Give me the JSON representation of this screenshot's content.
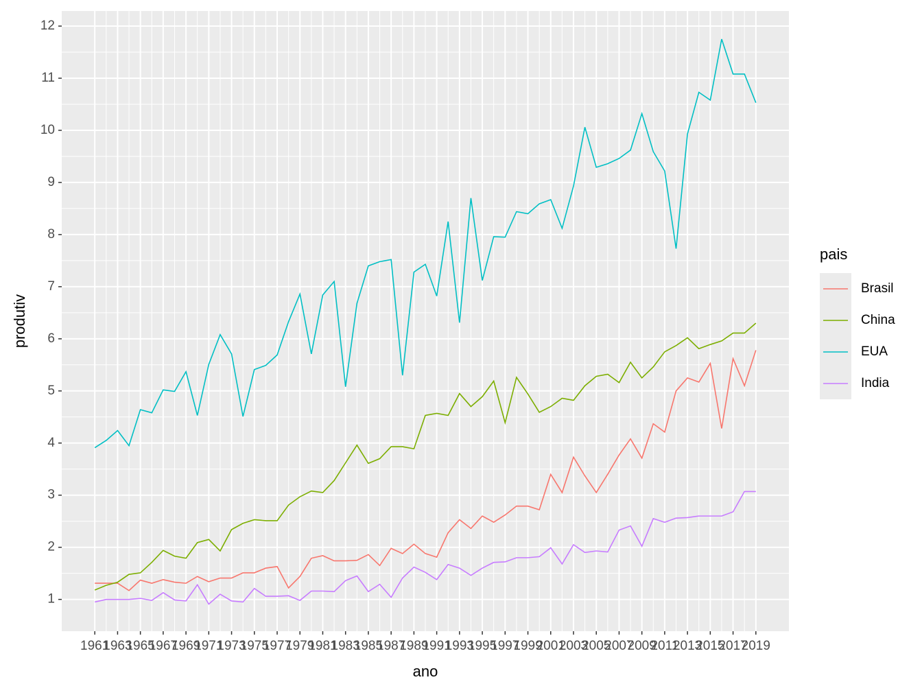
{
  "chart_data": {
    "type": "line",
    "x_label": "ano",
    "y_label": "produtiv",
    "legend_title": "pais",
    "legend_position": "right",
    "grid": true,
    "x": [
      1961,
      1962,
      1963,
      1964,
      1965,
      1966,
      1967,
      1968,
      1969,
      1970,
      1971,
      1972,
      1973,
      1974,
      1975,
      1976,
      1977,
      1978,
      1979,
      1980,
      1981,
      1982,
      1983,
      1984,
      1985,
      1986,
      1987,
      1988,
      1989,
      1990,
      1991,
      1992,
      1993,
      1994,
      1995,
      1996,
      1997,
      1998,
      1999,
      2000,
      2001,
      2002,
      2003,
      2004,
      2005,
      2006,
      2007,
      2008,
      2009,
      2010,
      2011,
      2012,
      2013,
      2014,
      2015,
      2016,
      2017,
      2018,
      2019
    ],
    "xlim": [
      1958.1,
      2021.9
    ],
    "xticks": [
      1961,
      1963,
      1965,
      1967,
      1969,
      1971,
      1973,
      1975,
      1977,
      1979,
      1981,
      1983,
      1985,
      1987,
      1989,
      1991,
      1993,
      1995,
      1997,
      1999,
      2001,
      2003,
      2005,
      2007,
      2009,
      2011,
      2013,
      2015,
      2017,
      2019
    ],
    "ylim": [
      0.39,
      12.29
    ],
    "yticks": [
      1,
      2,
      3,
      4,
      5,
      6,
      7,
      8,
      9,
      10,
      11,
      12
    ],
    "series": [
      {
        "name": "Brasil",
        "color": "#F8766D",
        "values": [
          1.31,
          1.31,
          1.31,
          1.17,
          1.37,
          1.31,
          1.38,
          1.33,
          1.31,
          1.44,
          1.34,
          1.41,
          1.41,
          1.51,
          1.51,
          1.6,
          1.63,
          1.22,
          1.44,
          1.79,
          1.84,
          1.74,
          1.74,
          1.75,
          1.86,
          1.65,
          1.98,
          1.88,
          2.06,
          1.88,
          1.81,
          2.28,
          2.53,
          2.36,
          2.6,
          2.48,
          2.62,
          2.79,
          2.79,
          2.72,
          3.4,
          3.05,
          3.73,
          3.37,
          3.05,
          3.4,
          3.77,
          4.08,
          3.71,
          4.37,
          4.21,
          5.0,
          5.25,
          5.17,
          5.53,
          4.28,
          5.62,
          5.1,
          5.78
        ]
      },
      {
        "name": "China",
        "color": "#7CAE00",
        "values": [
          1.18,
          1.27,
          1.33,
          1.48,
          1.51,
          1.71,
          1.94,
          1.83,
          1.79,
          2.09,
          2.15,
          1.93,
          2.34,
          2.46,
          2.53,
          2.51,
          2.51,
          2.81,
          2.97,
          3.08,
          3.05,
          3.28,
          3.62,
          3.96,
          3.61,
          3.7,
          3.93,
          3.93,
          3.89,
          4.53,
          4.57,
          4.53,
          4.95,
          4.7,
          4.89,
          5.19,
          4.39,
          5.26,
          4.94,
          4.59,
          4.7,
          4.86,
          4.82,
          5.1,
          5.28,
          5.32,
          5.16,
          5.55,
          5.25,
          5.46,
          5.75,
          5.87,
          6.02,
          5.81,
          5.89,
          5.96,
          6.11,
          6.11,
          6.3
        ]
      },
      {
        "name": "EUA",
        "color": "#00BFC4",
        "values": [
          3.91,
          4.05,
          4.24,
          3.95,
          4.64,
          4.58,
          5.02,
          4.99,
          5.37,
          4.53,
          5.51,
          6.08,
          5.71,
          4.51,
          5.41,
          5.49,
          5.69,
          6.33,
          6.86,
          5.71,
          6.84,
          7.1,
          5.08,
          6.68,
          7.4,
          7.48,
          7.52,
          5.3,
          7.28,
          7.43,
          6.82,
          8.25,
          6.31,
          8.7,
          7.12,
          7.96,
          7.95,
          8.44,
          8.4,
          8.59,
          8.67,
          8.12,
          8.93,
          10.06,
          9.29,
          9.36,
          9.46,
          9.62,
          10.32,
          9.59,
          9.22,
          7.73,
          9.93,
          10.73,
          10.58,
          11.75,
          11.08,
          11.08,
          10.53
        ]
      },
      {
        "name": "India",
        "color": "#C77CFF",
        "values": [
          0.95,
          1.0,
          1.0,
          1.0,
          1.02,
          0.98,
          1.13,
          0.99,
          0.97,
          1.28,
          0.91,
          1.1,
          0.97,
          0.95,
          1.21,
          1.06,
          1.06,
          1.07,
          0.98,
          1.16,
          1.16,
          1.15,
          1.36,
          1.45,
          1.15,
          1.29,
          1.04,
          1.41,
          1.62,
          1.52,
          1.38,
          1.67,
          1.6,
          1.46,
          1.6,
          1.71,
          1.72,
          1.8,
          1.8,
          1.82,
          1.99,
          1.68,
          2.05,
          1.9,
          1.93,
          1.91,
          2.33,
          2.41,
          2.02,
          2.55,
          2.48,
          2.56,
          2.57,
          2.6,
          2.6,
          2.6,
          2.68,
          3.07,
          3.07
        ]
      }
    ]
  }
}
